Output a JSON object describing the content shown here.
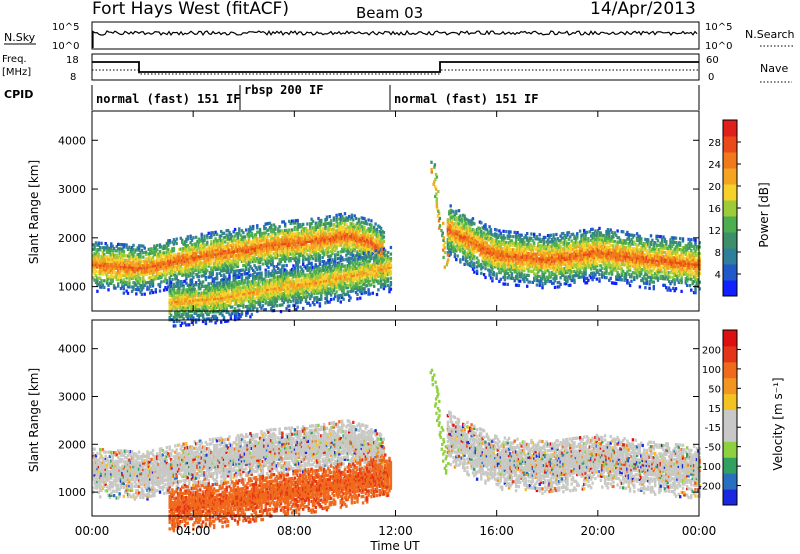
{
  "header": {
    "station": "Fort Hays West (fitACF)",
    "beam": "Beam 03",
    "date": "14/Apr/2013"
  },
  "nsky": {
    "label": "N.Sky",
    "ticks": [
      "10^5",
      "10^0"
    ],
    "right_label": "N.Search",
    "right_ticks": [
      "10^5",
      "10^0"
    ]
  },
  "freq": {
    "label_line1": "Freq.",
    "label_line2": "[MHz]",
    "ticks": [
      "18",
      "8"
    ],
    "right_label": "Nave",
    "right_ticks": [
      "60",
      "0"
    ]
  },
  "cpid": {
    "label": "CPID",
    "segments": [
      {
        "name": "normal (fast) 151 IF",
        "start_hour": 0,
        "end_hour": 6
      },
      {
        "name": "rbsp 200 IF",
        "start_hour": 6,
        "end_hour": 12
      },
      {
        "name": "normal (fast) 151 IF",
        "start_hour": 12,
        "end_hour": 24
      }
    ]
  },
  "chart_data": [
    {
      "type": "heatmap",
      "panel": "power",
      "ylabel": "Slant Range [km]",
      "yticks": [
        "1000",
        "2000",
        "3000",
        "4000"
      ],
      "ylim": [
        500,
        4600
      ],
      "xlim": [
        0,
        24
      ],
      "colorbar": {
        "label": "Power [dB]",
        "ticks": [
          "4",
          "8",
          "12",
          "16",
          "20",
          "24",
          "28"
        ],
        "colors": [
          "#1020ff",
          "#1f5ac8",
          "#2f7f9a",
          "#3c8f6a",
          "#4cae50",
          "#9ccc3a",
          "#f6d12c",
          "#f3a421",
          "#f0791b",
          "#ea4a1a",
          "#e0201a"
        ]
      },
      "bands": [
        {
          "x": [
            0.0,
            2.0,
            4.0,
            6.0,
            7.0,
            9.0,
            10.0,
            11.0,
            11.5
          ],
          "y": [
            1450,
            1380,
            1600,
            1750,
            1850,
            1950,
            2050,
            1900,
            1700
          ],
          "hw": 120,
          "intensity": 0.85
        },
        {
          "x": [
            3.0,
            5.0,
            7.0,
            9.0,
            10.5,
            11.8
          ],
          "y": [
            680,
            760,
            950,
            1100,
            1250,
            1400
          ],
          "hw": 110,
          "intensity": 0.7
        },
        {
          "x": [
            14.0,
            15.0,
            16.0,
            18.0,
            20.0,
            22.0,
            24.0
          ],
          "y": [
            2200,
            1900,
            1650,
            1550,
            1700,
            1550,
            1450
          ],
          "hw": 130,
          "intensity": 0.85
        }
      ]
    },
    {
      "type": "heatmap",
      "panel": "velocity",
      "ylabel": "Slant Range [km]",
      "yticks": [
        "1000",
        "2000",
        "3000",
        "4000"
      ],
      "ylim": [
        500,
        4600
      ],
      "xlim": [
        0,
        24
      ],
      "colorbar": {
        "label": "Velocity [m s⁻¹]",
        "ticks": [
          "200",
          "100",
          "50",
          "15",
          "-15",
          "-50",
          "-100",
          "-200"
        ],
        "colors": [
          "#1a28e0",
          "#276fbf",
          "#31a060",
          "#8fd040",
          "#c8c8c8",
          "#c8c8c8",
          "#f2c323",
          "#f29621",
          "#ef6a1c",
          "#e53519",
          "#dc1010"
        ]
      }
    }
  ],
  "xaxis": {
    "label": "Time UT",
    "ticks": [
      "00:00",
      "04:00",
      "08:00",
      "12:00",
      "16:00",
      "20:00",
      "00:00"
    ]
  }
}
